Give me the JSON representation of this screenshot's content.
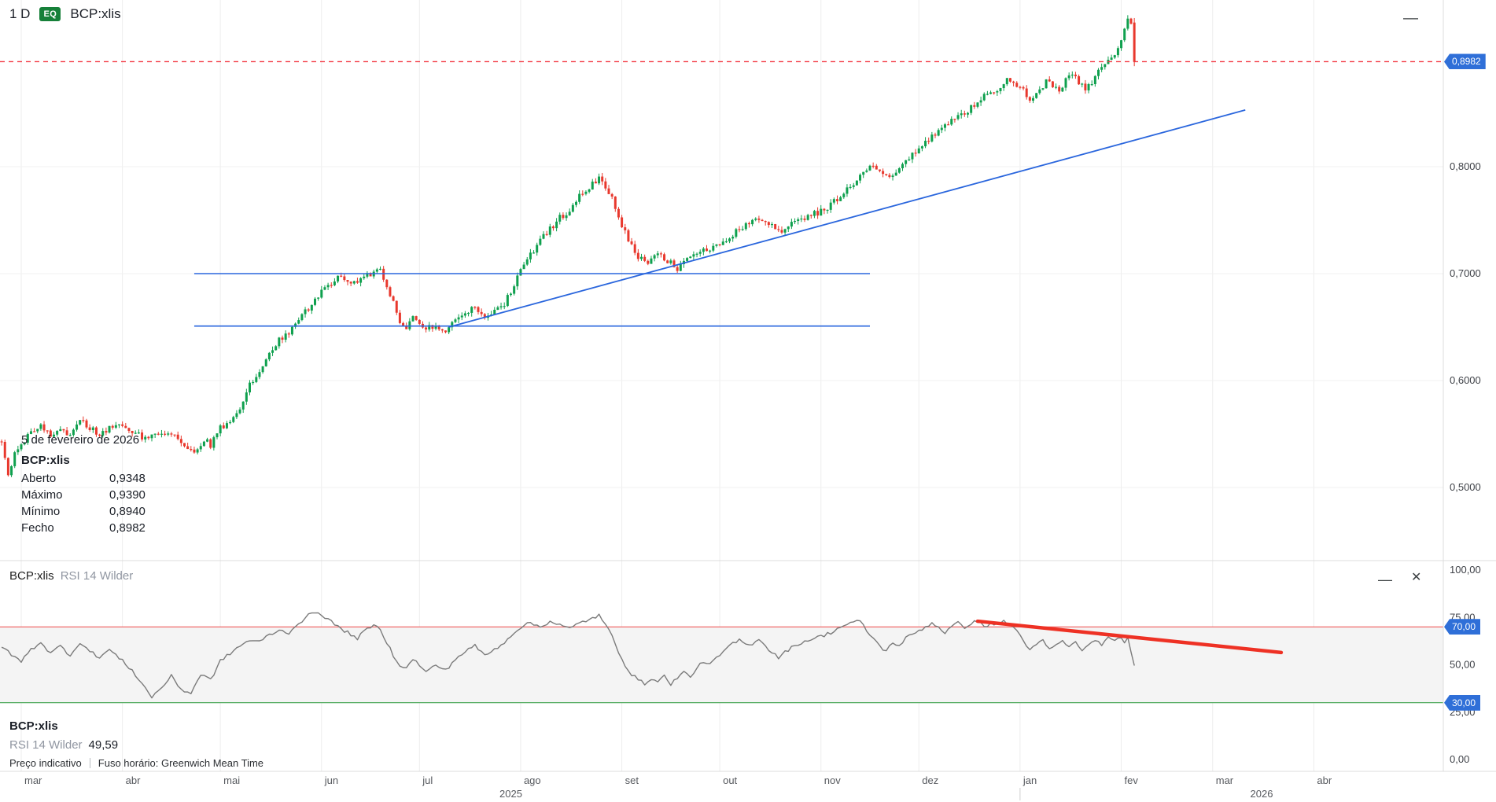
{
  "toolbar": {
    "timeframe": "1 D",
    "instrument_type_badge": "EQ",
    "symbol": "BCP:xlis"
  },
  "window_icons": {
    "minimize": "—",
    "rsi_minimize": "—",
    "rsi_close": "✕"
  },
  "main_tooltip": {
    "date": "5 de fevereiro de 2026",
    "symbol": "BCP:xlis",
    "rows": [
      {
        "label": "Aberto",
        "value": "0,9348"
      },
      {
        "label": "Máximo",
        "value": "0,9390"
      },
      {
        "label": "Mínimo",
        "value": "0,8940"
      },
      {
        "label": "Fecho",
        "value": "0,8982"
      }
    ]
  },
  "rsi_header": {
    "symbol": "BCP:xlis",
    "indicator": "RSI 14 Wilder"
  },
  "rsi_footer": {
    "symbol": "BCP:xlis",
    "indicator": "RSI 14 Wilder",
    "value": "49,59"
  },
  "status_bar": {
    "price_type": "Preço indicativo",
    "timezone": "Fuso horário: Greenwich Mean Time"
  },
  "price_badge": "0,8982",
  "rsi_upper_badge": "70,00",
  "rsi_lower_badge": "30,00",
  "colors": {
    "up": "#0fa04e",
    "down": "#e8382d",
    "accent_blue": "#2a66dd",
    "tag_blue": "#2f6fd8",
    "last_price_line": "#f23540",
    "rsi_line": "#7b7b7b",
    "rsi_upper": "#ef5b5b",
    "rsi_lower": "#3fa34d",
    "rsi_band": "#f4f4f4",
    "divergence_red": "#ee3124",
    "eq_badge": "#168039"
  },
  "chart_data": [
    {
      "type": "candlestick",
      "title": "BCP:xlis daily candles",
      "ylabel": "price",
      "ylim": [
        0.48,
        0.956
      ],
      "grid": true,
      "time_origin": "2025-03-01",
      "y_axis_ticks": [
        {
          "label": "0,8000",
          "value": 0.8
        },
        {
          "label": "0,7000",
          "value": 0.7
        },
        {
          "label": "0,6000",
          "value": 0.6
        },
        {
          "label": "0,5000",
          "value": 0.5
        }
      ],
      "x_axis_months": [
        {
          "label": "mar",
          "day": 0
        },
        {
          "label": "abr",
          "day": 31
        },
        {
          "label": "mai",
          "day": 61
        },
        {
          "label": "jun",
          "day": 92
        },
        {
          "label": "jul",
          "day": 122
        },
        {
          "label": "ago",
          "day": 153
        },
        {
          "label": "set",
          "day": 184
        },
        {
          "label": "out",
          "day": 214
        },
        {
          "label": "nov",
          "day": 245
        },
        {
          "label": "dez",
          "day": 275
        },
        {
          "label": "jan",
          "day": 306
        },
        {
          "label": "fev",
          "day": 337
        },
        {
          "label": "mar",
          "day": 365
        },
        {
          "label": "abr",
          "day": 396
        }
      ],
      "x_axis_years": [
        {
          "label": "2025",
          "day": 150
        },
        {
          "label": "2026",
          "day": 380
        }
      ],
      "last_candle": {
        "day": 341,
        "open": 0.9348,
        "high": 0.939,
        "low": 0.894,
        "close": 0.8982
      },
      "close_path": [
        [
          -6,
          0.545
        ],
        [
          -4,
          0.512
        ],
        [
          -2,
          0.53
        ],
        [
          0,
          0.541
        ],
        [
          3,
          0.552
        ],
        [
          6,
          0.558
        ],
        [
          9,
          0.55
        ],
        [
          12,
          0.556
        ],
        [
          15,
          0.548
        ],
        [
          18,
          0.562
        ],
        [
          21,
          0.556
        ],
        [
          24,
          0.548
        ],
        [
          27,
          0.556
        ],
        [
          31,
          0.56
        ],
        [
          34,
          0.552
        ],
        [
          38,
          0.545
        ],
        [
          41,
          0.553
        ],
        [
          44,
          0.548
        ],
        [
          47,
          0.552
        ],
        [
          50,
          0.536
        ],
        [
          53,
          0.532
        ],
        [
          56,
          0.545
        ],
        [
          58,
          0.54
        ],
        [
          61,
          0.556
        ],
        [
          64,
          0.562
        ],
        [
          67,
          0.575
        ],
        [
          70,
          0.596
        ],
        [
          73,
          0.61
        ],
        [
          76,
          0.625
        ],
        [
          79,
          0.638
        ],
        [
          82,
          0.645
        ],
        [
          85,
          0.658
        ],
        [
          88,
          0.668
        ],
        [
          92,
          0.682
        ],
        [
          95,
          0.692
        ],
        [
          98,
          0.698
        ],
        [
          101,
          0.69
        ],
        [
          104,
          0.695
        ],
        [
          107,
          0.7
        ],
        [
          110,
          0.703
        ],
        [
          112,
          0.688
        ],
        [
          114,
          0.672
        ],
        [
          116,
          0.655
        ],
        [
          118,
          0.648
        ],
        [
          120,
          0.658
        ],
        [
          122,
          0.655
        ],
        [
          124,
          0.648
        ],
        [
          127,
          0.652
        ],
        [
          130,
          0.646
        ],
        [
          133,
          0.655
        ],
        [
          136,
          0.662
        ],
        [
          139,
          0.668
        ],
        [
          142,
          0.66
        ],
        [
          145,
          0.665
        ],
        [
          148,
          0.672
        ],
        [
          151,
          0.69
        ],
        [
          153,
          0.703
        ],
        [
          156,
          0.718
        ],
        [
          159,
          0.73
        ],
        [
          162,
          0.742
        ],
        [
          165,
          0.752
        ],
        [
          168,
          0.76
        ],
        [
          171,
          0.772
        ],
        [
          174,
          0.78
        ],
        [
          177,
          0.79
        ],
        [
          179,
          0.782
        ],
        [
          181,
          0.77
        ],
        [
          183,
          0.752
        ],
        [
          185,
          0.738
        ],
        [
          187,
          0.726
        ],
        [
          189,
          0.715
        ],
        [
          192,
          0.71
        ],
        [
          195,
          0.718
        ],
        [
          198,
          0.712
        ],
        [
          201,
          0.705
        ],
        [
          204,
          0.712
        ],
        [
          207,
          0.718
        ],
        [
          210,
          0.722
        ],
        [
          214,
          0.728
        ],
        [
          217,
          0.735
        ],
        [
          220,
          0.742
        ],
        [
          223,
          0.748
        ],
        [
          226,
          0.752
        ],
        [
          229,
          0.746
        ],
        [
          232,
          0.74
        ],
        [
          235,
          0.744
        ],
        [
          238,
          0.75
        ],
        [
          241,
          0.754
        ],
        [
          245,
          0.758
        ],
        [
          248,
          0.765
        ],
        [
          251,
          0.772
        ],
        [
          254,
          0.782
        ],
        [
          257,
          0.792
        ],
        [
          260,
          0.8
        ],
        [
          263,
          0.795
        ],
        [
          266,
          0.788
        ],
        [
          269,
          0.798
        ],
        [
          272,
          0.808
        ],
        [
          275,
          0.818
        ],
        [
          278,
          0.826
        ],
        [
          281,
          0.833
        ],
        [
          284,
          0.84
        ],
        [
          287,
          0.846
        ],
        [
          290,
          0.852
        ],
        [
          293,
          0.86
        ],
        [
          296,
          0.868
        ],
        [
          299,
          0.872
        ],
        [
          301,
          0.878
        ],
        [
          303,
          0.882
        ],
        [
          306,
          0.875
        ],
        [
          308,
          0.866
        ],
        [
          310,
          0.862
        ],
        [
          312,
          0.872
        ],
        [
          314,
          0.88
        ],
        [
          316,
          0.874
        ],
        [
          318,
          0.87
        ],
        [
          320,
          0.88
        ],
        [
          322,
          0.886
        ],
        [
          324,
          0.88
        ],
        [
          326,
          0.874
        ],
        [
          328,
          0.88
        ],
        [
          330,
          0.888
        ],
        [
          332,
          0.895
        ],
        [
          334,
          0.902
        ],
        [
          336,
          0.912
        ],
        [
          337,
          0.92
        ],
        [
          338,
          0.93
        ],
        [
          339,
          0.938
        ],
        [
          340,
          0.932
        ],
        [
          341,
          0.8982
        ]
      ],
      "drawings": {
        "horizontal_lines": [
          {
            "price": 0.7,
            "from_day": 53,
            "to_day": 260
          },
          {
            "price": 0.651,
            "from_day": 53,
            "to_day": 260
          }
        ],
        "trend_line": {
          "from": {
            "day": 131,
            "price": 0.65
          },
          "to": {
            "day": 375,
            "price": 0.853
          }
        },
        "last_price_level": 0.8982
      }
    },
    {
      "type": "line",
      "title": "RSI 14 Wilder",
      "ylim": [
        0,
        100
      ],
      "levels": {
        "upper": 70,
        "lower": 30
      },
      "last_value": 49.59,
      "y_axis_ticks": [
        {
          "label": "100,00",
          "value": 100
        },
        {
          "label": "75,00",
          "value": 75
        },
        {
          "label": "50,00",
          "value": 50
        },
        {
          "label": "25,00",
          "value": 25
        },
        {
          "label": "0,00",
          "value": 0
        }
      ],
      "rsi_path": [
        [
          -6,
          60
        ],
        [
          -3,
          55
        ],
        [
          0,
          52
        ],
        [
          3,
          58
        ],
        [
          6,
          62
        ],
        [
          9,
          56
        ],
        [
          12,
          60
        ],
        [
          15,
          55
        ],
        [
          18,
          62
        ],
        [
          21,
          57
        ],
        [
          24,
          54
        ],
        [
          27,
          58
        ],
        [
          31,
          52
        ],
        [
          34,
          47
        ],
        [
          37,
          40
        ],
        [
          40,
          33
        ],
        [
          43,
          38
        ],
        [
          46,
          44
        ],
        [
          49,
          37
        ],
        [
          52,
          35
        ],
        [
          55,
          45
        ],
        [
          58,
          42
        ],
        [
          61,
          52
        ],
        [
          64,
          56
        ],
        [
          67,
          60
        ],
        [
          70,
          63
        ],
        [
          73,
          62
        ],
        [
          76,
          66
        ],
        [
          79,
          68
        ],
        [
          82,
          67
        ],
        [
          85,
          72
        ],
        [
          88,
          76
        ],
        [
          91,
          78
        ],
        [
          94,
          74
        ],
        [
          97,
          70
        ],
        [
          100,
          67
        ],
        [
          103,
          64
        ],
        [
          106,
          69
        ],
        [
          109,
          71
        ],
        [
          112,
          62
        ],
        [
          114,
          55
        ],
        [
          116,
          50
        ],
        [
          118,
          48
        ],
        [
          120,
          53
        ],
        [
          122,
          50
        ],
        [
          124,
          46
        ],
        [
          127,
          50
        ],
        [
          130,
          47
        ],
        [
          133,
          53
        ],
        [
          136,
          57
        ],
        [
          139,
          60
        ],
        [
          142,
          55
        ],
        [
          145,
          58
        ],
        [
          148,
          62
        ],
        [
          151,
          67
        ],
        [
          153,
          70
        ],
        [
          156,
          72
        ],
        [
          159,
          70
        ],
        [
          162,
          73
        ],
        [
          165,
          71
        ],
        [
          168,
          69
        ],
        [
          171,
          72
        ],
        [
          174,
          74
        ],
        [
          177,
          76
        ],
        [
          179,
          71
        ],
        [
          181,
          65
        ],
        [
          183,
          57
        ],
        [
          185,
          50
        ],
        [
          187,
          45
        ],
        [
          189,
          42
        ],
        [
          191,
          40
        ],
        [
          193,
          43
        ],
        [
          195,
          41
        ],
        [
          197,
          44
        ],
        [
          199,
          40
        ],
        [
          201,
          43
        ],
        [
          203,
          46
        ],
        [
          205,
          44
        ],
        [
          207,
          48
        ],
        [
          209,
          52
        ],
        [
          211,
          50
        ],
        [
          214,
          55
        ],
        [
          217,
          60
        ],
        [
          220,
          63
        ],
        [
          223,
          60
        ],
        [
          226,
          64
        ],
        [
          229,
          58
        ],
        [
          232,
          54
        ],
        [
          235,
          58
        ],
        [
          238,
          61
        ],
        [
          241,
          63
        ],
        [
          245,
          65
        ],
        [
          248,
          67
        ],
        [
          251,
          70
        ],
        [
          254,
          72
        ],
        [
          257,
          73
        ],
        [
          259,
          68
        ],
        [
          261,
          64
        ],
        [
          263,
          60
        ],
        [
          265,
          57
        ],
        [
          267,
          62
        ],
        [
          269,
          60
        ],
        [
          271,
          64
        ],
        [
          273,
          66
        ],
        [
          275,
          68
        ],
        [
          277,
          70
        ],
        [
          279,
          72
        ],
        [
          281,
          70
        ],
        [
          283,
          67
        ],
        [
          285,
          70
        ],
        [
          287,
          72
        ],
        [
          289,
          70
        ],
        [
          291,
          72
        ],
        [
          293,
          73
        ],
        [
          295,
          70
        ],
        [
          297,
          72
        ],
        [
          299,
          71
        ],
        [
          301,
          73
        ],
        [
          303,
          71
        ],
        [
          305,
          68
        ],
        [
          307,
          63
        ],
        [
          309,
          58
        ],
        [
          311,
          60
        ],
        [
          313,
          63
        ],
        [
          315,
          58
        ],
        [
          317,
          60
        ],
        [
          319,
          63
        ],
        [
          321,
          59
        ],
        [
          323,
          62
        ],
        [
          325,
          58
        ],
        [
          327,
          60
        ],
        [
          329,
          63
        ],
        [
          331,
          61
        ],
        [
          333,
          64
        ],
        [
          335,
          62
        ],
        [
          337,
          65
        ],
        [
          338,
          62
        ],
        [
          339,
          64
        ],
        [
          340,
          56
        ],
        [
          341,
          49.59
        ]
      ],
      "divergence_line": {
        "from": {
          "day": 293,
          "value": 73
        },
        "to": {
          "day": 386,
          "value": 56.5
        }
      }
    }
  ]
}
